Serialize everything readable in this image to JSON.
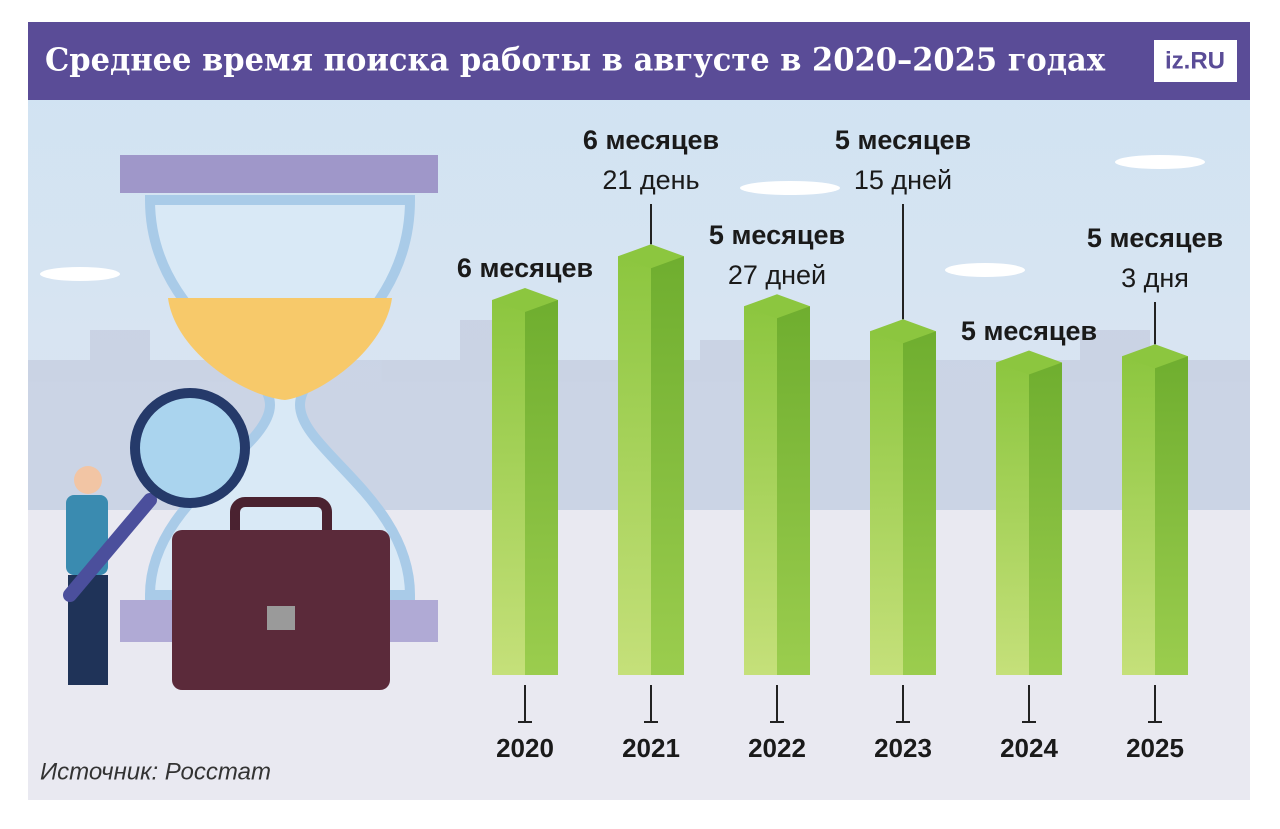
{
  "chart_data": {
    "type": "bar",
    "title": "Среднее время поиска работы в августе в 2020–2025 годах",
    "logo": "iz.RU",
    "source": "Источник: Росстат",
    "categories": [
      "2020",
      "2021",
      "2022",
      "2023",
      "2024",
      "2025"
    ],
    "values": [
      6,
      6.7,
      5.9,
      5.5,
      5,
      5.1
    ],
    "value_labels": [
      [
        "6 месяцев"
      ],
      [
        "6 месяцев",
        "21 день"
      ],
      [
        "5 месяцев",
        "27 дней"
      ],
      [
        "5 месяцев",
        "15 дней"
      ],
      [
        "5 месяцев"
      ],
      [
        "5 месяцев",
        "3 дня"
      ]
    ],
    "color": "#8cc63f"
  }
}
